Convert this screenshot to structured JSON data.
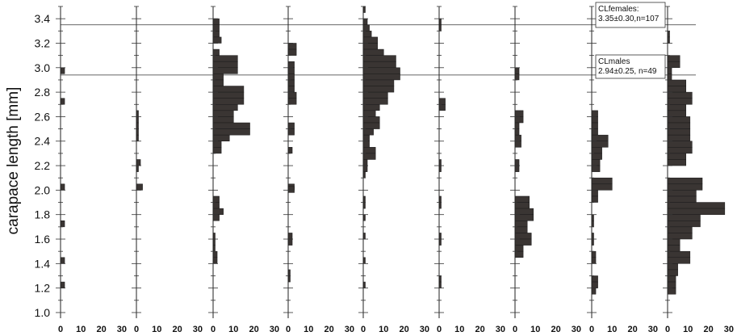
{
  "chart_data": {
    "type": "bar",
    "orientation": "horizontal",
    "ylabel": "carapace length [mm]",
    "yticks": [
      "1.0",
      "1.2",
      "1.4",
      "1.6",
      "1.8",
      "2.0",
      "2.2",
      "2.4",
      "2.6",
      "2.8",
      "3.0",
      "3.2",
      "3.4"
    ],
    "ylim": [
      0.98,
      3.5
    ],
    "xlim": [
      0,
      30
    ],
    "xticks": [
      "0",
      "10",
      "20",
      "30"
    ],
    "bin_width": 0.05,
    "reference_lines": [
      {
        "y": 3.35,
        "label_lines": [
          "CLfemales:",
          "3.35±0.30,n=107"
        ]
      },
      {
        "y": 2.94,
        "label_lines": [
          "CLmales",
          "2.94±0.25, n=49"
        ]
      }
    ],
    "panels": [
      {
        "bins": [
          {
            "y": 2.975,
            "x": 2
          },
          {
            "y": 2.725,
            "x": 2
          },
          {
            "y": 2.025,
            "x": 2
          },
          {
            "y": 1.725,
            "x": 2
          },
          {
            "y": 1.425,
            "x": 2
          },
          {
            "y": 1.225,
            "x": 2
          }
        ]
      },
      {
        "bins": [
          {
            "y": 2.625,
            "x": 1
          },
          {
            "y": 2.575,
            "x": 1
          },
          {
            "y": 2.525,
            "x": 1
          },
          {
            "y": 2.475,
            "x": 1
          },
          {
            "y": 2.425,
            "x": 1
          },
          {
            "y": 2.225,
            "x": 2
          },
          {
            "y": 2.175,
            "x": 1
          },
          {
            "y": 2.025,
            "x": 3
          }
        ]
      },
      {
        "bins": [
          {
            "y": 3.375,
            "x": 3
          },
          {
            "y": 3.325,
            "x": 3
          },
          {
            "y": 3.275,
            "x": 3
          },
          {
            "y": 3.225,
            "x": 4
          },
          {
            "y": 3.125,
            "x": 3
          },
          {
            "y": 3.075,
            "x": 12
          },
          {
            "y": 3.025,
            "x": 12
          },
          {
            "y": 2.975,
            "x": 12
          },
          {
            "y": 2.925,
            "x": 5
          },
          {
            "y": 2.875,
            "x": 5
          },
          {
            "y": 2.825,
            "x": 15
          },
          {
            "y": 2.775,
            "x": 15
          },
          {
            "y": 2.725,
            "x": 15
          },
          {
            "y": 2.675,
            "x": 12
          },
          {
            "y": 2.625,
            "x": 10
          },
          {
            "y": 2.575,
            "x": 10
          },
          {
            "y": 2.525,
            "x": 18
          },
          {
            "y": 2.475,
            "x": 18
          },
          {
            "y": 2.425,
            "x": 8
          },
          {
            "y": 2.375,
            "x": 4
          },
          {
            "y": 2.325,
            "x": 4
          },
          {
            "y": 1.925,
            "x": 3
          },
          {
            "y": 1.875,
            "x": 3
          },
          {
            "y": 1.825,
            "x": 5
          },
          {
            "y": 1.775,
            "x": 3
          },
          {
            "y": 1.625,
            "x": 1
          },
          {
            "y": 1.575,
            "x": 1
          },
          {
            "y": 1.525,
            "x": 1
          },
          {
            "y": 1.475,
            "x": 2
          },
          {
            "y": 1.425,
            "x": 2
          }
        ]
      },
      {
        "bins": [
          {
            "y": 3.175,
            "x": 4
          },
          {
            "y": 3.125,
            "x": 4
          },
          {
            "y": 3.025,
            "x": 3
          },
          {
            "y": 2.975,
            "x": 3
          },
          {
            "y": 2.925,
            "x": 3
          },
          {
            "y": 2.875,
            "x": 3
          },
          {
            "y": 2.825,
            "x": 3
          },
          {
            "y": 2.775,
            "x": 4
          },
          {
            "y": 2.725,
            "x": 4
          },
          {
            "y": 2.525,
            "x": 3
          },
          {
            "y": 2.475,
            "x": 3
          },
          {
            "y": 2.325,
            "x": 2
          },
          {
            "y": 2.025,
            "x": 3
          },
          {
            "y": 2.005,
            "x": 3
          },
          {
            "y": 1.625,
            "x": 2
          },
          {
            "y": 1.575,
            "x": 2
          },
          {
            "y": 1.325,
            "x": 1
          },
          {
            "y": 1.275,
            "x": 1
          }
        ]
      },
      {
        "bins": [
          {
            "y": 3.475,
            "x": 1
          },
          {
            "y": 3.375,
            "x": 2
          },
          {
            "y": 3.325,
            "x": 3
          },
          {
            "y": 3.275,
            "x": 4
          },
          {
            "y": 3.225,
            "x": 7
          },
          {
            "y": 3.175,
            "x": 7
          },
          {
            "y": 3.125,
            "x": 10
          },
          {
            "y": 3.075,
            "x": 16
          },
          {
            "y": 3.025,
            "x": 16
          },
          {
            "y": 2.975,
            "x": 18
          },
          {
            "y": 2.925,
            "x": 18
          },
          {
            "y": 2.875,
            "x": 15
          },
          {
            "y": 2.825,
            "x": 15
          },
          {
            "y": 2.775,
            "x": 12
          },
          {
            "y": 2.725,
            "x": 12
          },
          {
            "y": 2.675,
            "x": 8
          },
          {
            "y": 2.625,
            "x": 6
          },
          {
            "y": 2.575,
            "x": 8
          },
          {
            "y": 2.525,
            "x": 8
          },
          {
            "y": 2.475,
            "x": 5
          },
          {
            "y": 2.425,
            "x": 3
          },
          {
            "y": 2.375,
            "x": 3
          },
          {
            "y": 2.325,
            "x": 6
          },
          {
            "y": 2.275,
            "x": 6
          },
          {
            "y": 2.225,
            "x": 2
          },
          {
            "y": 2.175,
            "x": 2
          },
          {
            "y": 2.125,
            "x": 1
          },
          {
            "y": 1.925,
            "x": 1
          },
          {
            "y": 1.875,
            "x": 1
          },
          {
            "y": 1.775,
            "x": 1
          },
          {
            "y": 1.625,
            "x": 1
          },
          {
            "y": 1.425,
            "x": 1
          },
          {
            "y": 1.225,
            "x": 1
          }
        ]
      },
      {
        "bins": [
          {
            "y": 3.375,
            "x": 1
          },
          {
            "y": 3.325,
            "x": 1
          },
          {
            "y": 2.725,
            "x": 3
          },
          {
            "y": 2.675,
            "x": 3
          },
          {
            "y": 2.225,
            "x": 1
          },
          {
            "y": 2.175,
            "x": 1
          },
          {
            "y": 1.925,
            "x": 1
          },
          {
            "y": 1.875,
            "x": 1
          },
          {
            "y": 1.625,
            "x": 1
          },
          {
            "y": 1.575,
            "x": 1
          },
          {
            "y": 1.275,
            "x": 1
          },
          {
            "y": 1.225,
            "x": 1
          }
        ]
      },
      {
        "bins": [
          {
            "y": 2.975,
            "x": 2
          },
          {
            "y": 2.925,
            "x": 2
          },
          {
            "y": 2.625,
            "x": 4
          },
          {
            "y": 2.575,
            "x": 4
          },
          {
            "y": 2.525,
            "x": 2
          },
          {
            "y": 2.475,
            "x": 2
          },
          {
            "y": 2.425,
            "x": 3
          },
          {
            "y": 2.375,
            "x": 3
          },
          {
            "y": 2.225,
            "x": 2
          },
          {
            "y": 2.175,
            "x": 2
          },
          {
            "y": 1.925,
            "x": 7
          },
          {
            "y": 1.875,
            "x": 7
          },
          {
            "y": 1.825,
            "x": 9
          },
          {
            "y": 1.775,
            "x": 9
          },
          {
            "y": 1.725,
            "x": 6
          },
          {
            "y": 1.675,
            "x": 6
          },
          {
            "y": 1.625,
            "x": 8
          },
          {
            "y": 1.575,
            "x": 8
          },
          {
            "y": 1.525,
            "x": 4
          },
          {
            "y": 1.475,
            "x": 4
          }
        ]
      },
      {
        "bins": [
          {
            "y": 2.625,
            "x": 3
          },
          {
            "y": 2.575,
            "x": 3
          },
          {
            "y": 2.525,
            "x": 3
          },
          {
            "y": 2.475,
            "x": 3
          },
          {
            "y": 2.425,
            "x": 8
          },
          {
            "y": 2.375,
            "x": 8
          },
          {
            "y": 2.325,
            "x": 5
          },
          {
            "y": 2.275,
            "x": 5
          },
          {
            "y": 2.225,
            "x": 4
          },
          {
            "y": 2.175,
            "x": 4
          },
          {
            "y": 2.075,
            "x": 10
          },
          {
            "y": 2.025,
            "x": 10
          },
          {
            "y": 1.975,
            "x": 3
          },
          {
            "y": 1.925,
            "x": 3
          },
          {
            "y": 1.775,
            "x": 1
          },
          {
            "y": 1.725,
            "x": 1
          },
          {
            "y": 1.625,
            "x": 1
          },
          {
            "y": 1.575,
            "x": 1
          },
          {
            "y": 1.475,
            "x": 2
          },
          {
            "y": 1.425,
            "x": 2
          },
          {
            "y": 1.275,
            "x": 3
          },
          {
            "y": 1.225,
            "x": 3
          },
          {
            "y": 1.175,
            "x": 2
          }
        ]
      },
      {
        "bins": [
          {
            "y": 3.275,
            "x": 1
          },
          {
            "y": 3.225,
            "x": 1
          },
          {
            "y": 3.075,
            "x": 6
          },
          {
            "y": 3.025,
            "x": 6
          },
          {
            "y": 2.975,
            "x": 2
          },
          {
            "y": 2.925,
            "x": 2
          },
          {
            "y": 2.875,
            "x": 9
          },
          {
            "y": 2.825,
            "x": 9
          },
          {
            "y": 2.775,
            "x": 12
          },
          {
            "y": 2.725,
            "x": 12
          },
          {
            "y": 2.675,
            "x": 9
          },
          {
            "y": 2.625,
            "x": 9
          },
          {
            "y": 2.575,
            "x": 11
          },
          {
            "y": 2.525,
            "x": 11
          },
          {
            "y": 2.475,
            "x": 11
          },
          {
            "y": 2.425,
            "x": 11
          },
          {
            "y": 2.375,
            "x": 12
          },
          {
            "y": 2.325,
            "x": 12
          },
          {
            "y": 2.275,
            "x": 9
          },
          {
            "y": 2.225,
            "x": 9
          },
          {
            "y": 2.075,
            "x": 17
          },
          {
            "y": 2.025,
            "x": 17
          },
          {
            "y": 1.975,
            "x": 14
          },
          {
            "y": 1.925,
            "x": 14
          },
          {
            "y": 1.875,
            "x": 28
          },
          {
            "y": 1.825,
            "x": 28
          },
          {
            "y": 1.775,
            "x": 16
          },
          {
            "y": 1.725,
            "x": 16
          },
          {
            "y": 1.675,
            "x": 12
          },
          {
            "y": 1.625,
            "x": 12
          },
          {
            "y": 1.575,
            "x": 6
          },
          {
            "y": 1.525,
            "x": 6
          },
          {
            "y": 1.475,
            "x": 11
          },
          {
            "y": 1.425,
            "x": 11
          },
          {
            "y": 1.375,
            "x": 5
          },
          {
            "y": 1.325,
            "x": 5
          },
          {
            "y": 1.275,
            "x": 4
          },
          {
            "y": 1.225,
            "x": 4
          },
          {
            "y": 1.175,
            "x": 4
          }
        ]
      }
    ]
  }
}
